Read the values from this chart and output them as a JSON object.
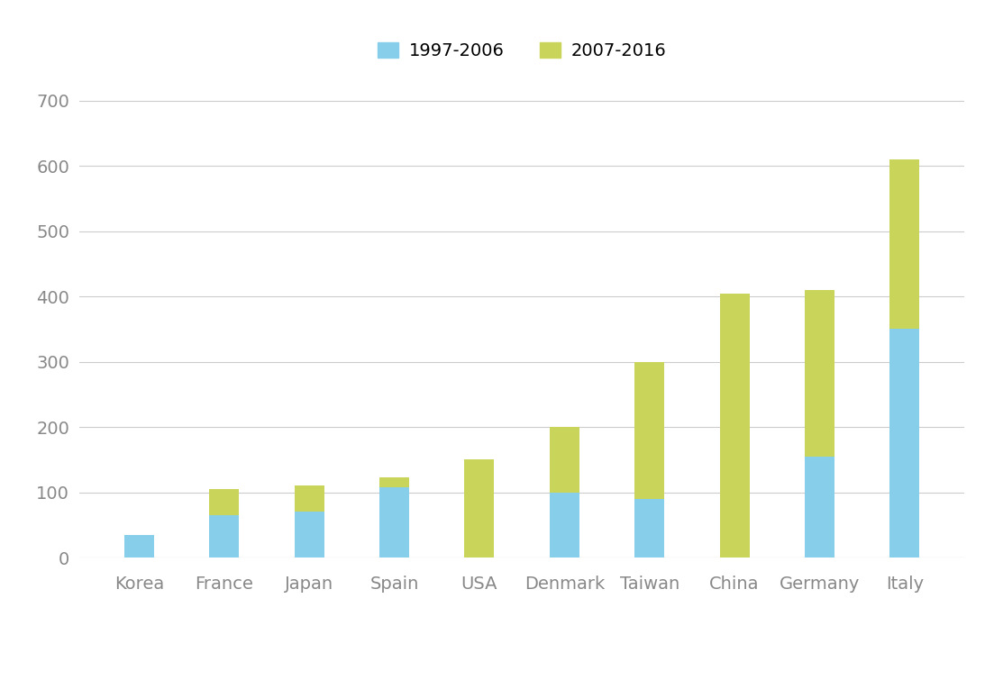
{
  "categories": [
    "Korea",
    "France",
    "Japan",
    "Spain",
    "USA",
    "Denmark",
    "Taiwan",
    "China",
    "Germany",
    "Italy"
  ],
  "values_1997_2006": [
    35,
    65,
    70,
    108,
    0,
    100,
    90,
    0,
    155,
    350
  ],
  "values_2007_2016": [
    0,
    40,
    40,
    15,
    150,
    100,
    210,
    405,
    255,
    260
  ],
  "color_1997_2006": "#87CEEB",
  "color_2007_2016": "#C8D45A",
  "legend_labels": [
    "1997-2006",
    "2007-2016"
  ],
  "yticks": [
    0,
    100,
    200,
    300,
    400,
    500,
    600,
    700
  ],
  "ylim": [
    0,
    750
  ],
  "background_color": "#ffffff",
  "grid_color": "#cccccc",
  "bar_width": 0.35,
  "tick_color": "#888888",
  "tick_fontsize": 14
}
